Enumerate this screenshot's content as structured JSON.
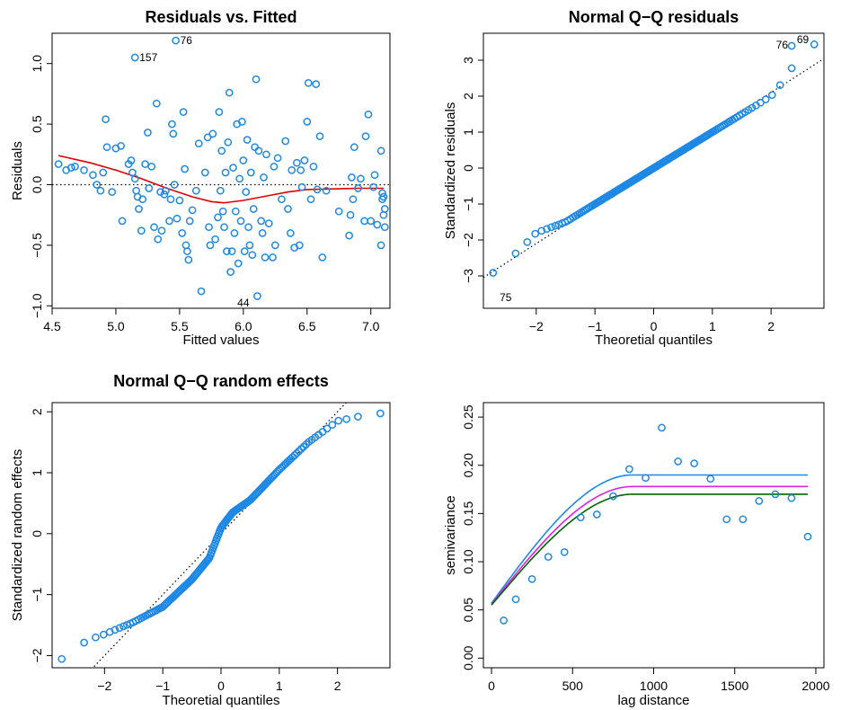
{
  "colors": {
    "points": "#1e88e5",
    "smooth": "#e00000",
    "fit_blue": "#1e88e5",
    "fit_magenta": "#e020e0",
    "fit_green": "#006400",
    "frame": "#000000"
  },
  "chart_data": [
    {
      "type": "scatter",
      "title": "Residuals vs. Fitted",
      "xlabel": "Fitted values",
      "ylabel": "Residuals",
      "xlim": [
        4.5,
        7.15
      ],
      "ylim": [
        -1.02,
        1.25
      ],
      "xticks": [
        4.5,
        5.0,
        5.5,
        6.0,
        6.5,
        7.0
      ],
      "xtick_labels": [
        "4.5",
        "5.0",
        "5.5",
        "6.0",
        "6.5",
        "7.0"
      ],
      "yticks": [
        -1.0,
        -0.5,
        0.0,
        0.5,
        1.0
      ],
      "ytick_labels": [
        "−1.0",
        "−0.5",
        "0.0",
        "0.5",
        "1.0"
      ],
      "reference_line": {
        "y": 0,
        "style": "dotted"
      },
      "labels": [
        {
          "text": "76",
          "x": 5.47,
          "y": 1.19
        },
        {
          "text": "157",
          "x": 5.15,
          "y": 1.05
        },
        {
          "text": "44",
          "x": 6.0,
          "y": -0.93
        }
      ],
      "points": [
        [
          4.55,
          0.17
        ],
        [
          4.61,
          0.12
        ],
        [
          4.65,
          0.14
        ],
        [
          4.68,
          0.15
        ],
        [
          4.75,
          0.12
        ],
        [
          4.82,
          0.08
        ],
        [
          4.85,
          0.0
        ],
        [
          4.88,
          -0.05
        ],
        [
          4.9,
          0.1
        ],
        [
          4.92,
          0.54
        ],
        [
          4.93,
          0.31
        ],
        [
          4.97,
          -0.06
        ],
        [
          5.0,
          0.3
        ],
        [
          5.04,
          0.32
        ],
        [
          5.05,
          -0.3
        ],
        [
          5.1,
          0.17
        ],
        [
          5.12,
          0.2
        ],
        [
          5.13,
          0.1
        ],
        [
          5.15,
          0.05
        ],
        [
          5.15,
          1.05
        ],
        [
          5.16,
          -0.05
        ],
        [
          5.17,
          -0.1
        ],
        [
          5.18,
          -0.2
        ],
        [
          5.2,
          -0.38
        ],
        [
          5.21,
          -0.12
        ],
        [
          5.23,
          0.17
        ],
        [
          5.25,
          0.43
        ],
        [
          5.26,
          -0.03
        ],
        [
          5.28,
          0.15
        ],
        [
          5.3,
          -0.35
        ],
        [
          5.32,
          0.67
        ],
        [
          5.33,
          -0.45
        ],
        [
          5.35,
          -0.06
        ],
        [
          5.36,
          -0.38
        ],
        [
          5.38,
          -0.08
        ],
        [
          5.39,
          -0.05
        ],
        [
          5.42,
          -0.3
        ],
        [
          5.43,
          -0.12
        ],
        [
          5.44,
          0.5
        ],
        [
          5.45,
          0.42
        ],
        [
          5.46,
          0.0
        ],
        [
          5.47,
          1.19
        ],
        [
          5.48,
          -0.28
        ],
        [
          5.5,
          -0.13
        ],
        [
          5.52,
          -0.4
        ],
        [
          5.53,
          0.6
        ],
        [
          5.54,
          0.13
        ],
        [
          5.55,
          -0.5
        ],
        [
          5.56,
          -0.55
        ],
        [
          5.57,
          -0.62
        ],
        [
          5.58,
          -0.3
        ],
        [
          5.6,
          -0.21
        ],
        [
          5.63,
          -0.05
        ],
        [
          5.65,
          0.34
        ],
        [
          5.67,
          -0.88
        ],
        [
          5.7,
          0.1
        ],
        [
          5.72,
          0.39
        ],
        [
          5.73,
          -0.35
        ],
        [
          5.74,
          -0.5
        ],
        [
          5.76,
          0.42
        ],
        [
          5.78,
          -0.45
        ],
        [
          5.8,
          -0.27
        ],
        [
          5.81,
          0.6
        ],
        [
          5.82,
          -0.05
        ],
        [
          5.83,
          0.28
        ],
        [
          5.84,
          -0.22
        ],
        [
          5.85,
          -0.35
        ],
        [
          5.86,
          0.1
        ],
        [
          5.87,
          -0.55
        ],
        [
          5.88,
          0.35
        ],
        [
          5.89,
          0.76
        ],
        [
          5.9,
          -0.72
        ],
        [
          5.91,
          -0.55
        ],
        [
          5.92,
          0.14
        ],
        [
          5.93,
          -0.4
        ],
        [
          5.94,
          -0.22
        ],
        [
          5.95,
          0.5
        ],
        [
          5.96,
          -0.65
        ],
        [
          5.97,
          0.05
        ],
        [
          5.98,
          -0.3
        ],
        [
          5.99,
          0.52
        ],
        [
          6.0,
          0.2
        ],
        [
          6.01,
          -0.55
        ],
        [
          6.02,
          -0.06
        ],
        [
          6.03,
          0.37
        ],
        [
          6.04,
          -0.35
        ],
        [
          6.05,
          -0.5
        ],
        [
          6.06,
          0.1
        ],
        [
          6.07,
          -0.58
        ],
        [
          6.08,
          -0.2
        ],
        [
          6.09,
          0.31
        ],
        [
          6.1,
          0.87
        ],
        [
          6.11,
          -0.92
        ],
        [
          6.12,
          0.28
        ],
        [
          6.14,
          -0.3
        ],
        [
          6.15,
          -0.4
        ],
        [
          6.16,
          0.06
        ],
        [
          6.17,
          -0.6
        ],
        [
          6.18,
          0.25
        ],
        [
          6.2,
          -0.32
        ],
        [
          6.23,
          -0.6
        ],
        [
          6.24,
          0.15
        ],
        [
          6.25,
          -0.5
        ],
        [
          6.27,
          0.22
        ],
        [
          6.3,
          -0.12
        ],
        [
          6.33,
          0.36
        ],
        [
          6.35,
          -0.2
        ],
        [
          6.37,
          -0.4
        ],
        [
          6.38,
          0.12
        ],
        [
          6.4,
          -0.52
        ],
        [
          6.42,
          0.18
        ],
        [
          6.44,
          -0.5
        ],
        [
          6.45,
          0.12
        ],
        [
          6.46,
          -0.02
        ],
        [
          6.48,
          0.2
        ],
        [
          6.5,
          0.52
        ],
        [
          6.51,
          0.84
        ],
        [
          6.53,
          -0.12
        ],
        [
          6.55,
          0.15
        ],
        [
          6.57,
          0.83
        ],
        [
          6.58,
          -0.04
        ],
        [
          6.6,
          0.4
        ],
        [
          6.62,
          -0.6
        ],
        [
          6.65,
          -0.05
        ],
        [
          6.75,
          -0.22
        ],
        [
          6.83,
          -0.42
        ],
        [
          6.84,
          -0.25
        ],
        [
          6.85,
          0.06
        ],
        [
          6.86,
          -0.12
        ],
        [
          6.87,
          0.31
        ],
        [
          6.9,
          -0.03
        ],
        [
          6.92,
          0.05
        ],
        [
          6.95,
          -0.3
        ],
        [
          6.96,
          0.4
        ],
        [
          6.98,
          0.58
        ],
        [
          7.0,
          -0.3
        ],
        [
          7.02,
          -0.02
        ],
        [
          7.03,
          0.08
        ],
        [
          7.05,
          -0.33
        ],
        [
          7.08,
          -0.5
        ],
        [
          7.08,
          0.28
        ],
        [
          7.09,
          -0.12
        ],
        [
          7.09,
          -0.07
        ],
        [
          7.1,
          -0.25
        ],
        [
          7.1,
          -0.1
        ],
        [
          7.11,
          -0.2
        ],
        [
          7.11,
          -0.35
        ]
      ],
      "smooth": [
        [
          4.55,
          0.24
        ],
        [
          4.8,
          0.18
        ],
        [
          5.0,
          0.12
        ],
        [
          5.2,
          0.05
        ],
        [
          5.4,
          -0.03
        ],
        [
          5.6,
          -0.1
        ],
        [
          5.75,
          -0.14
        ],
        [
          5.85,
          -0.15
        ],
        [
          6.0,
          -0.13
        ],
        [
          6.2,
          -0.09
        ],
        [
          6.35,
          -0.06
        ],
        [
          6.5,
          -0.04
        ],
        [
          6.7,
          -0.035
        ],
        [
          6.9,
          -0.03
        ],
        [
          7.1,
          -0.03
        ]
      ]
    },
    {
      "type": "scatter",
      "title": "Normal Q−Q residuals",
      "xlabel": "Theoretial quantiles",
      "ylabel": "Standardized residuals",
      "xlim": [
        -2.9,
        2.9
      ],
      "ylim": [
        -3.9,
        3.75
      ],
      "xticks": [
        -2,
        -1,
        0,
        1,
        2
      ],
      "xtick_labels": [
        "−2",
        "−1",
        "0",
        "1",
        "2"
      ],
      "yticks": [
        -3,
        -2,
        -1,
        0,
        1,
        2,
        3
      ],
      "ytick_labels": [
        "−3",
        "−2",
        "−1",
        "0",
        "1",
        "2",
        "3"
      ],
      "reference_line": {
        "intercept": 0,
        "slope": 1.05,
        "style": "dotted"
      },
      "labels": [
        {
          "text": "75",
          "x": -2.7,
          "y": -3.6
        },
        {
          "text": "76",
          "x": 2.35,
          "y": 3.4
        },
        {
          "text": "69",
          "x": 2.72,
          "y": 3.5
        }
      ],
      "points": "qq_residuals"
    },
    {
      "type": "scatter",
      "title": "Normal Q−Q random effects",
      "xlabel": "Theoretial quantiles",
      "ylabel": "Standardized random effects",
      "xlim": [
        -2.9,
        2.9
      ],
      "ylim": [
        -2.2,
        2.15
      ],
      "xticks": [
        -2,
        -1,
        0,
        1,
        2
      ],
      "xtick_labels": [
        "−2",
        "−1",
        "0",
        "1",
        "2"
      ],
      "yticks": [
        -2,
        -1,
        0,
        1,
        2
      ],
      "ytick_labels": [
        "−2",
        "−1",
        "0",
        "1",
        "2"
      ],
      "reference_line": {
        "intercept": 0,
        "slope": 1.0,
        "style": "dotted"
      },
      "points": "qq_random"
    },
    {
      "type": "scatter",
      "title": "",
      "xlabel": "lag distance",
      "ylabel": "semivariance",
      "xlim": [
        -50,
        2050
      ],
      "ylim": [
        -0.01,
        0.265
      ],
      "xticks": [
        0,
        500,
        1000,
        1500,
        2000
      ],
      "xtick_labels": [
        "0",
        "500",
        "1000",
        "1500",
        "2000"
      ],
      "yticks": [
        0.0,
        0.05,
        0.1,
        0.15,
        0.2,
        0.25
      ],
      "ytick_labels": [
        "0.00",
        "0.05",
        "0.10",
        "0.15",
        "0.20",
        "0.25"
      ],
      "points": [
        [
          75,
          0.039
        ],
        [
          150,
          0.061
        ],
        [
          250,
          0.082
        ],
        [
          350,
          0.105
        ],
        [
          450,
          0.11
        ],
        [
          550,
          0.146
        ],
        [
          650,
          0.149
        ],
        [
          750,
          0.168
        ],
        [
          850,
          0.196
        ],
        [
          950,
          0.187
        ],
        [
          1050,
          0.239
        ],
        [
          1150,
          0.204
        ],
        [
          1250,
          0.202
        ],
        [
          1350,
          0.186
        ],
        [
          1450,
          0.144
        ],
        [
          1550,
          0.144
        ],
        [
          1650,
          0.163
        ],
        [
          1750,
          0.17
        ],
        [
          1850,
          0.166
        ],
        [
          1950,
          0.126
        ]
      ],
      "series": [
        {
          "color": "blue",
          "nugget": 0.057,
          "sill": 0.19,
          "range": 870
        },
        {
          "color": "magenta",
          "nugget": 0.056,
          "sill": 0.178,
          "range": 870
        },
        {
          "color": "green",
          "nugget": 0.055,
          "sill": 0.17,
          "range": 870
        }
      ],
      "x_max_line": 1950
    }
  ]
}
